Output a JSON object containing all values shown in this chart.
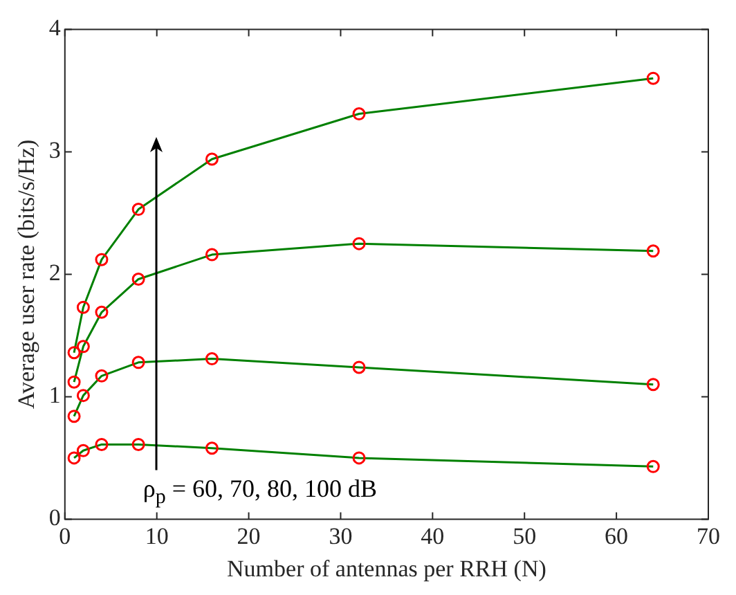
{
  "chart_data": {
    "type": "line",
    "xlabel": "Number of antennas per RRH (N)",
    "ylabel": "Average user rate (bits/s/Hz)",
    "x": [
      1,
      2,
      4,
      8,
      16,
      32,
      64
    ],
    "series": [
      {
        "color": "#008000",
        "values": [
          1.36,
          1.73,
          2.12,
          2.53,
          2.94,
          3.31,
          3.6
        ]
      },
      {
        "color": "#008000",
        "values": [
          1.12,
          1.41,
          1.69,
          1.96,
          2.16,
          2.25,
          2.19
        ]
      },
      {
        "color": "#008000",
        "values": [
          0.84,
          1.01,
          1.17,
          1.28,
          1.31,
          1.24,
          1.1
        ]
      },
      {
        "color": "#008000",
        "values": [
          0.5,
          0.56,
          0.61,
          0.61,
          0.58,
          0.5,
          0.43
        ]
      }
    ],
    "xlim": [
      0,
      70
    ],
    "xticks": [
      0,
      10,
      20,
      30,
      40,
      50,
      60,
      70
    ],
    "ylim": [
      0,
      4
    ],
    "yticks": [
      0,
      1,
      2,
      3,
      4
    ],
    "grid": false,
    "legend": false,
    "marker": "circle",
    "line_style": "solid",
    "annotations": [
      "ρ$_{p}$ = 60, 70, 80, 100 dB"
    ]
  }
}
